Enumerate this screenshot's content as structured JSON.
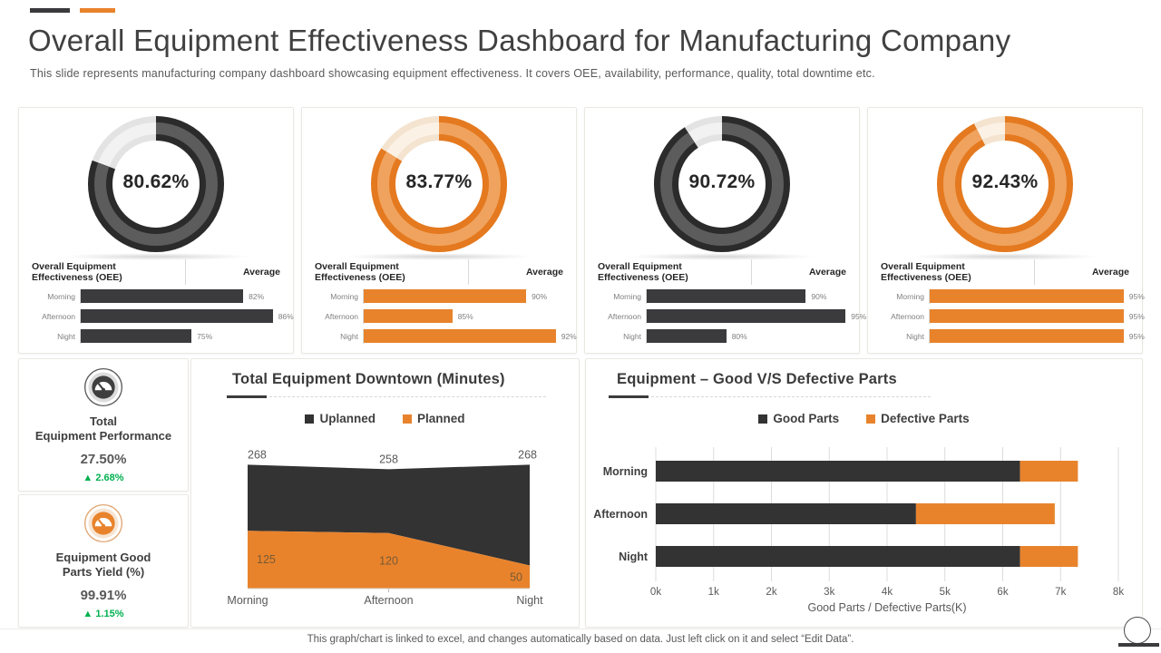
{
  "slide": {
    "title": "Overall Equipment Effectiveness Dashboard for Manufacturing Company",
    "subtitle": "This slide represents manufacturing company dashboard showcasing equipment effectiveness. It covers OEE,  availability,  performance, quality, total downtime etc.",
    "footer_note": "This graph/chart is linked to excel,  and changes automatically based on data. Just left click on it and select “Edit Data”.",
    "accent_dark": "#3A3A3C",
    "accent_orange": "#E8832C",
    "positive_color": "#00B050"
  },
  "themes": {
    "dark": {
      "edge": "#2B2B2B",
      "band": "#5C5C5C",
      "rest_edge": "#E3E3E3",
      "rest_band": "#F2F2F2",
      "bar": "#3B3B3D"
    },
    "orange": {
      "edge": "#E4791F",
      "band": "#F0A35E",
      "rest_edge": "#F4E3CF",
      "rest_band": "#FBF1E5",
      "bar": "#E8832C"
    }
  },
  "chart_data": [
    {
      "type": "donut",
      "name": "oee-gauge-1",
      "center_label": "80.62%",
      "percent": 80.62,
      "theme": "dark",
      "header_left": "Overall Equipment\nEffectiveness (OEE)",
      "header_right": "Average",
      "bars": {
        "categories": [
          "Morning",
          "Afternoon",
          "Night"
        ],
        "values": [
          82,
          86,
          75
        ],
        "labels": [
          "82%",
          "86%",
          "75%"
        ],
        "axis_range": [
          60,
          88
        ]
      }
    },
    {
      "type": "donut",
      "name": "oee-gauge-2",
      "center_label": "83.77%",
      "percent": 83.77,
      "theme": "orange",
      "header_left": "Overall Equipment\nEffectiveness (OEE)",
      "header_right": "Average",
      "bars": {
        "categories": [
          "Morning",
          "Afternoon",
          "Night"
        ],
        "values": [
          90,
          85,
          92
        ],
        "labels": [
          "90%",
          "85%",
          "92%"
        ],
        "axis_range": [
          79,
          93
        ]
      }
    },
    {
      "type": "donut",
      "name": "oee-gauge-3",
      "center_label": "90.72%",
      "percent": 90.72,
      "theme": "dark",
      "header_left": "Overall Equipment\nEffectiveness (OEE)",
      "header_right": "Average",
      "bars": {
        "categories": [
          "Morning",
          "Afternoon",
          "Night"
        ],
        "values": [
          90,
          95,
          80
        ],
        "labels": [
          "90%",
          "95%",
          "80%"
        ],
        "axis_range": [
          70,
          96
        ]
      }
    },
    {
      "type": "donut",
      "name": "oee-gauge-4",
      "center_label": "92.43%",
      "percent": 92.43,
      "theme": "orange",
      "header_left": "Overall Equipment\nEffectiveness (OEE)",
      "header_right": "Average",
      "bars": {
        "categories": [
          "Morning",
          "Afternoon",
          "Night"
        ],
        "values": [
          95,
          95,
          95
        ],
        "labels": [
          "95%",
          "95%",
          "95%"
        ],
        "axis_range": [
          80,
          96
        ]
      }
    },
    {
      "type": "area",
      "name": "downtime-area",
      "title": "Total Equipment Downtown (Minutes)",
      "categories": [
        "Morning",
        "Afternoon",
        "Night"
      ],
      "series": [
        {
          "name": "Uplanned",
          "color": "#333333",
          "values": [
            268,
            258,
            268
          ]
        },
        {
          "name": "Planned",
          "color": "#E8832C",
          "values": [
            125,
            120,
            50
          ]
        }
      ],
      "value_labels": {
        "uplanned": [
          "268",
          "258",
          "268"
        ],
        "planned": [
          "125",
          "120",
          "50"
        ]
      },
      "stacked": true,
      "ylim": [
        0,
        300
      ],
      "legend_position": "top"
    },
    {
      "type": "bar",
      "name": "parts-stacked-bar",
      "title": "Equipment – Good V/S Defective Parts",
      "orientation": "horizontal",
      "stacked": true,
      "categories": [
        "Morning",
        "Afternoon",
        "Night"
      ],
      "series": [
        {
          "name": "Good Parts",
          "color": "#333333",
          "values": [
            6300,
            4500,
            6300
          ]
        },
        {
          "name": "Defective Parts",
          "color": "#E8832C",
          "values": [
            1000,
            2400,
            1000
          ]
        }
      ],
      "xlim": [
        0,
        8000
      ],
      "xticks": [
        "0k",
        "1k",
        "2k",
        "3k",
        "4k",
        "5k",
        "6k",
        "7k",
        "8k"
      ],
      "xlabel": "Good Parts / Defective Parts(K)",
      "grid": true,
      "legend_position": "top"
    }
  ],
  "kpis": [
    {
      "line1": "Total",
      "line2": "Equipment Performance",
      "value": "27.50%",
      "delta": "▲ 2.68%",
      "icon": "gauge-icon",
      "theme": "dark"
    },
    {
      "line1": "Equipment Good",
      "line2": "Parts Yield (%)",
      "value": "99.91%",
      "delta": "▲ 1.15%",
      "icon": "gauge-icon",
      "theme": "orange"
    }
  ]
}
